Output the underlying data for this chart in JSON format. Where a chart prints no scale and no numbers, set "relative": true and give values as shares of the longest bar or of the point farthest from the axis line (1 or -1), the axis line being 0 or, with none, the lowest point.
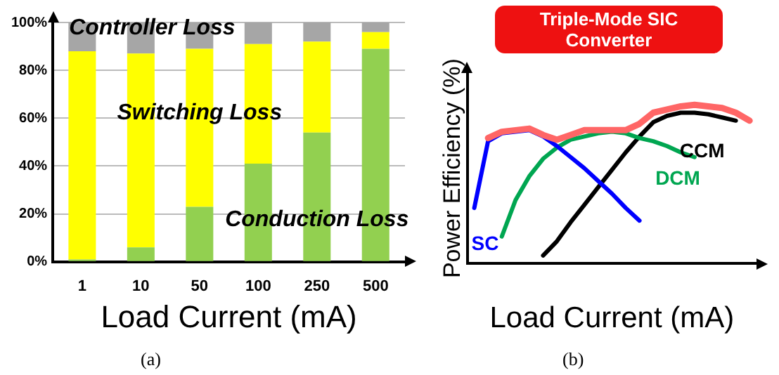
{
  "chart_data": [
    {
      "type": "bar",
      "stacked": true,
      "categories": [
        "1",
        "10",
        "50",
        "100",
        "250",
        "500"
      ],
      "xlabel": "Load Current (mA)",
      "ylim": [
        0,
        100
      ],
      "yticks": [
        {
          "value": 0,
          "label": "0%"
        },
        {
          "value": 20,
          "label": "20%"
        },
        {
          "value": 40,
          "label": "40%"
        },
        {
          "value": 60,
          "label": "60%"
        },
        {
          "value": 80,
          "label": "80%"
        },
        {
          "value": 100,
          "label": "100%"
        }
      ],
      "grid": "y",
      "legend": false,
      "series": [
        {
          "name": "Conduction Loss",
          "color": "#92d050",
          "values": [
            1,
            6,
            23,
            41,
            54,
            89
          ]
        },
        {
          "name": "Switching Loss",
          "color": "#ffff00",
          "values": [
            87,
            81,
            66,
            50,
            38,
            7
          ]
        },
        {
          "name": "Controller Loss",
          "color": "#a6a6a6",
          "values": [
            12,
            13,
            11,
            9,
            8,
            4
          ]
        }
      ],
      "annotations": [
        "(a)"
      ]
    },
    {
      "type": "line",
      "relative": true,
      "title": "Triple-Mode SIC Converter",
      "xlabel": "Load Current (mA)",
      "ylabel": "Power Efficiency (%)",
      "categories": [
        null,
        null,
        null,
        null,
        null,
        null,
        null,
        null,
        null,
        null,
        null,
        null,
        null,
        null,
        null,
        null,
        null,
        null,
        null,
        null,
        null
      ],
      "grid": false,
      "legend": false,
      "marker": "none",
      "line_style": "solid",
      "series": [
        {
          "color": "#ff6666",
          "values": [
            null,
            0.79,
            0.83,
            0.84,
            0.85,
            0.81,
            0.78,
            0.81,
            0.84,
            0.84,
            0.84,
            0.84,
            0.88,
            0.95,
            0.97,
            0.99,
            1.0,
            0.99,
            0.98,
            0.95,
            0.9
          ]
        },
        {
          "name": "SC",
          "color": "#0000ff",
          "values": [
            0.35,
            0.77,
            0.82,
            0.83,
            0.84,
            0.8,
            0.74,
            0.67,
            0.6,
            0.52,
            0.44,
            0.35,
            0.27,
            null,
            null,
            null,
            null,
            null,
            null,
            null,
            null
          ]
        },
        {
          "name": "DCM",
          "color": "#00a651",
          "values": [
            null,
            null,
            0.17,
            0.4,
            0.55,
            0.66,
            0.73,
            0.78,
            0.8,
            0.82,
            0.83,
            0.82,
            0.79,
            0.77,
            0.74,
            0.7,
            0.67,
            null,
            null,
            null,
            null
          ]
        },
        {
          "name": "CCM",
          "color": "#000000",
          "values": [
            null,
            null,
            null,
            null,
            null,
            0.05,
            0.14,
            0.26,
            0.37,
            0.48,
            0.59,
            0.7,
            0.8,
            0.89,
            0.93,
            0.95,
            0.95,
            0.94,
            0.92,
            0.9,
            null
          ]
        }
      ],
      "annotations": [
        "(b)"
      ]
    }
  ]
}
